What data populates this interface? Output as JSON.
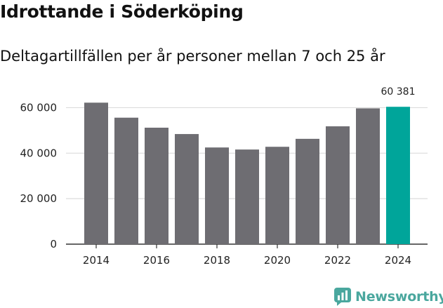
{
  "header": {
    "title": "Idrottande i Söderköping",
    "subtitle": "Deltagartillfällen per år personer mellan 7 och 25 år"
  },
  "brand": {
    "name": "Newsworthy",
    "icon": "newsworthy-logo-icon",
    "color": "#4aa79e"
  },
  "chart_data": {
    "type": "bar",
    "categories": [
      "2014",
      "2015",
      "2016",
      "2017",
      "2018",
      "2019",
      "2020",
      "2021",
      "2022",
      "2023",
      "2024"
    ],
    "values": [
      62200,
      55600,
      51200,
      48400,
      42500,
      41600,
      42800,
      46300,
      51800,
      59700,
      60381
    ],
    "ylim": [
      0,
      66000
    ],
    "yticks": [
      0,
      20000,
      40000,
      60000
    ],
    "ytick_labels": [
      "0",
      "20 000",
      "40 000",
      "60 000"
    ],
    "xtick_labels": [
      "2014",
      "2016",
      "2018",
      "2020",
      "2022",
      "2024"
    ],
    "highlight_index": 10,
    "highlight_label": "60 381",
    "bar_color": "#6e6d72",
    "highlight_color": "#00a59a",
    "grid": true
  }
}
